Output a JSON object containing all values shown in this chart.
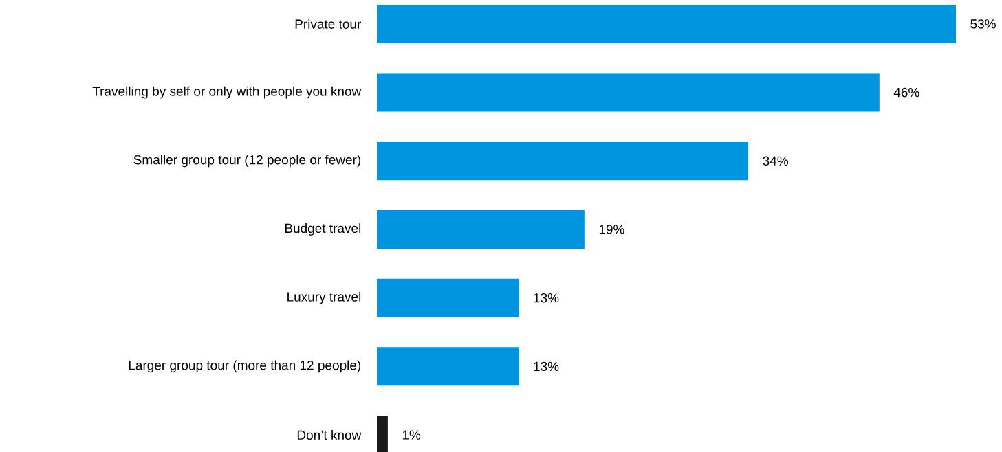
{
  "chart_data": {
    "type": "bar",
    "orientation": "horizontal",
    "categories": [
      "Private tour",
      "Travelling by self or only with people you know",
      "Smaller group tour (12 people or fewer)",
      "Budget travel",
      "Luxury travel",
      "Larger group tour (more than 12 people)",
      "Don’t know"
    ],
    "values": [
      53,
      46,
      34,
      19,
      13,
      13,
      1
    ],
    "colors": [
      "#0095de",
      "#0095de",
      "#0095de",
      "#0095de",
      "#0095de",
      "#0095de",
      "#1a1a1a"
    ],
    "value_labels": [
      "53%",
      "46%",
      "34%",
      "19%",
      "13%",
      "13%",
      "1%"
    ]
  }
}
